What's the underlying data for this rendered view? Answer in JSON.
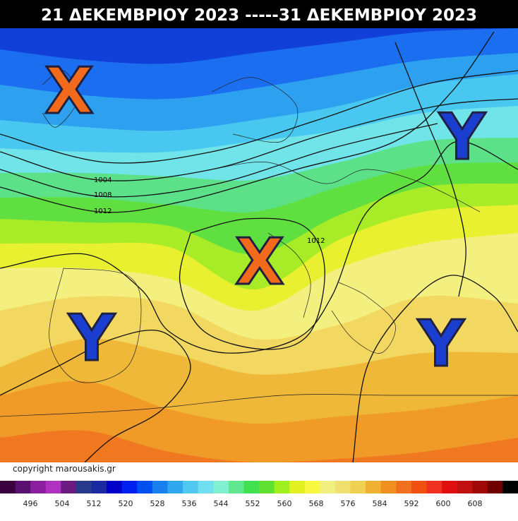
{
  "header": {
    "title": "21 ΔΕΚΕΜΒΡΙΟΥ 2023 -----31 ΔΕΚΕΜΒΡΙΟΥ 2023"
  },
  "markers": [
    {
      "label": "X"
    },
    {
      "label": "Y"
    },
    {
      "label": "X"
    },
    {
      "label": "Y"
    },
    {
      "label": "Y"
    }
  ],
  "isobar_labels": [
    "1004",
    "1008",
    "1012",
    "1012"
  ],
  "copyright": "copyright marousakis.gr",
  "colorbar": {
    "labels": [
      496,
      504,
      512,
      520,
      528,
      536,
      544,
      552,
      560,
      568,
      576,
      584,
      592,
      600,
      608
    ],
    "colors": [
      "#3a0040",
      "#5a1070",
      "#8a20a0",
      "#b030c0",
      "#6a1a80",
      "#2a3a8a",
      "#1a2aa0",
      "#0000c8",
      "#0020f0",
      "#0050f0",
      "#1a80f0",
      "#30a8f0",
      "#50c8f0",
      "#70e0f0",
      "#80f0d0",
      "#60e890",
      "#40e050",
      "#60e030",
      "#a0f020",
      "#e0f020",
      "#f8f840",
      "#f0f080",
      "#f0e070",
      "#f0d050",
      "#f0b030",
      "#f09020",
      "#f07020",
      "#f05010",
      "#f03020",
      "#e01010",
      "#c01010",
      "#a00808",
      "#700000",
      "#000000"
    ]
  }
}
